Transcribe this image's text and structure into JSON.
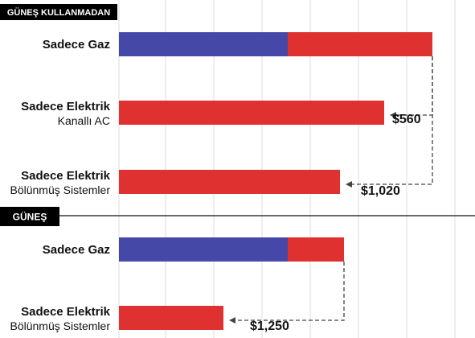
{
  "chart_data": {
    "type": "bar",
    "orientation": "horizontal",
    "stacked": true,
    "grid": true,
    "colors": {
      "gas": "#4648a8",
      "electric": "#e03131",
      "grid": "#dcdcdc",
      "arrow": "#444444",
      "badge": "#000000"
    },
    "sections": [
      {
        "title": "GÜNEŞ KULLANMADAN",
        "categories": [
          {
            "label": "Sadece Gaz",
            "sub": "",
            "gas": 210,
            "electric": 180
          },
          {
            "label": "Sadece Elektrik",
            "sub": "Kanallı AC",
            "gas": 0,
            "electric": 330
          },
          {
            "label": "Sadece Elektrik",
            "sub": "Bölünmüş Sistemler",
            "gas": 0,
            "electric": 275
          }
        ],
        "savings": [
          {
            "text": "$560",
            "from": 0,
            "to": 1
          },
          {
            "text": "$1,020",
            "from": 0,
            "to": 2
          }
        ]
      },
      {
        "title": "GÜNEŞ",
        "categories": [
          {
            "label": "Sadece Gaz",
            "sub": "",
            "gas": 210,
            "electric": 70
          },
          {
            "label": "Sadece Elektrik",
            "sub": "Bölünmüş Sistemler",
            "gas": 0,
            "electric": 130
          }
        ],
        "savings": [
          {
            "text": "$1,250",
            "from": 0,
            "to": 1
          }
        ]
      }
    ]
  }
}
